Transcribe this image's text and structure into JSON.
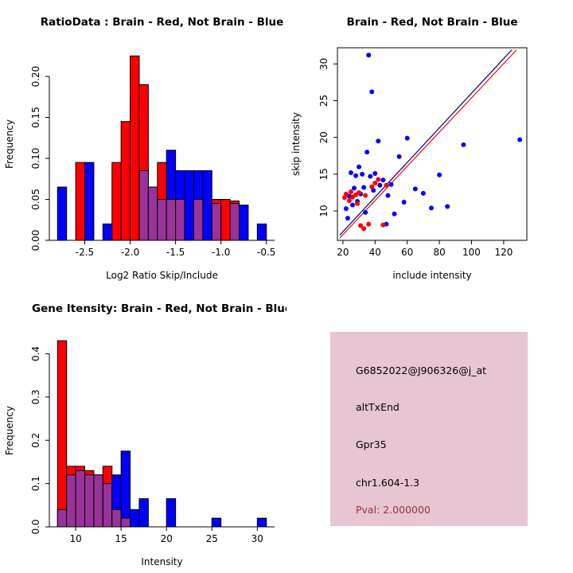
{
  "colors": {
    "red": "#FF0000",
    "blue": "#0000FF",
    "overlap": "#993399",
    "line_red": "#FF0000",
    "line_blue": "#00008B",
    "axis": "#000000",
    "info_bg": "#E8C5D3",
    "pval_text": "#993333"
  },
  "chart_data": [
    {
      "id": "ratio_hist",
      "type": "bar",
      "title": "RatioData : Brain - Red, Not Brain - Blue",
      "xlabel": "Log2 Ratio Skip/Include",
      "ylabel": "Frequency",
      "xlim": [
        -2.89,
        -0.41
      ],
      "ylim": [
        0,
        0.235
      ],
      "xticks": [
        -2.5,
        -2.0,
        -1.5,
        -1.0,
        -0.5
      ],
      "xtick_labels": [
        "-2.5",
        "-2.0",
        "-1.5",
        "-1.0",
        "-0.5"
      ],
      "yticks": [
        0.0,
        0.05,
        0.1,
        0.15,
        0.2
      ],
      "ytick_labels": [
        "0.00",
        "0.05",
        "0.10",
        "0.15",
        "0.20"
      ],
      "bin_width": 0.1,
      "legend": [
        {
          "name": "Brain",
          "color": "red"
        },
        {
          "name": "Not Brain",
          "color": "blue"
        }
      ],
      "bins": [
        {
          "x": -2.8,
          "red": 0,
          "blue": 0.065
        },
        {
          "x": -2.6,
          "red": 0.095,
          "blue": 0
        },
        {
          "x": -2.5,
          "red": 0,
          "blue": 0.095
        },
        {
          "x": -2.3,
          "red": 0,
          "blue": 0.02
        },
        {
          "x": -2.2,
          "red": 0.095,
          "blue": 0
        },
        {
          "x": -2.1,
          "red": 0.145,
          "blue": 0
        },
        {
          "x": -2.0,
          "red": 0.225,
          "blue": 0
        },
        {
          "x": -1.9,
          "red": 0.19,
          "blue": 0.085
        },
        {
          "x": -1.8,
          "red": 0.065,
          "blue": 0.065
        },
        {
          "x": -1.7,
          "red": 0.095,
          "blue": 0.05
        },
        {
          "x": -1.6,
          "red": 0.05,
          "blue": 0.11
        },
        {
          "x": -1.5,
          "red": 0.05,
          "blue": 0.085
        },
        {
          "x": -1.4,
          "red": 0,
          "blue": 0.085
        },
        {
          "x": -1.3,
          "red": 0.05,
          "blue": 0.085
        },
        {
          "x": -1.2,
          "red": 0,
          "blue": 0.085
        },
        {
          "x": -1.1,
          "red": 0.05,
          "blue": 0.045
        },
        {
          "x": -1.0,
          "red": 0.05,
          "blue": 0
        },
        {
          "x": -0.9,
          "red": 0.048,
          "blue": 0.045
        },
        {
          "x": -0.8,
          "red": 0,
          "blue": 0.043
        },
        {
          "x": -0.6,
          "red": 0,
          "blue": 0.02
        }
      ]
    },
    {
      "id": "intensity_scatter",
      "type": "scatter",
      "title": "Brain - Red, Not Brain - Blue",
      "xlabel": "include intensity",
      "ylabel": "skip intensity",
      "xlim": [
        16.6,
        134.4
      ],
      "ylim": [
        6.0,
        32.2
      ],
      "xticks": [
        20,
        40,
        60,
        80,
        100,
        120
      ],
      "xtick_labels": [
        "20",
        "40",
        "60",
        "80",
        "100",
        "120"
      ],
      "yticks": [
        10,
        15,
        20,
        25,
        30
      ],
      "ytick_labels": [
        "10",
        "15",
        "20",
        "25",
        "30"
      ],
      "series": [
        {
          "name": "Not Brain",
          "color": "blue",
          "points": [
            [
              22,
              10.3
            ],
            [
              23,
              9.0
            ],
            [
              24,
              12.0
            ],
            [
              25,
              15.2
            ],
            [
              26,
              10.8
            ],
            [
              27,
              13.1
            ],
            [
              28,
              14.8
            ],
            [
              29,
              11.3
            ],
            [
              30,
              16.0
            ],
            [
              31,
              12.3
            ],
            [
              32,
              15.0
            ],
            [
              33,
              13.2
            ],
            [
              34,
              9.8
            ],
            [
              35,
              18.0
            ],
            [
              36,
              31.2
            ],
            [
              37,
              14.7
            ],
            [
              38,
              26.2
            ],
            [
              39,
              12.8
            ],
            [
              40,
              15.1
            ],
            [
              42,
              19.5
            ],
            [
              43,
              13.5
            ],
            [
              45,
              14.2
            ],
            [
              47,
              8.2
            ],
            [
              48,
              12.1
            ],
            [
              50,
              13.6
            ],
            [
              52,
              9.6
            ],
            [
              55,
              17.4
            ],
            [
              58,
              11.2
            ],
            [
              60,
              19.9
            ],
            [
              65,
              13.0
            ],
            [
              70,
              12.4
            ],
            [
              75,
              10.4
            ],
            [
              80,
              14.9
            ],
            [
              85,
              10.6
            ],
            [
              95,
              19.0
            ],
            [
              130,
              19.7
            ]
          ]
        },
        {
          "name": "Brain",
          "color": "red",
          "points": [
            [
              21,
              11.8
            ],
            [
              22,
              12.3
            ],
            [
              24,
              11.4
            ],
            [
              25,
              12.6
            ],
            [
              26,
              11.9
            ],
            [
              28,
              12.2
            ],
            [
              29,
              11.0
            ],
            [
              30,
              12.5
            ],
            [
              31,
              8.0
            ],
            [
              33,
              7.6
            ],
            [
              34,
              12.1
            ],
            [
              36,
              8.2
            ],
            [
              38,
              13.3
            ],
            [
              40,
              13.8
            ],
            [
              42,
              14.3
            ],
            [
              45,
              8.1
            ],
            [
              47,
              13.5
            ]
          ]
        }
      ],
      "lines": [
        {
          "name": "brain-fit-line",
          "color": "red",
          "x1": 18,
          "y1": 6.3,
          "x2": 128,
          "y2": 31.9
        },
        {
          "name": "notbrain-fit-line",
          "color": "blue",
          "x1": 18,
          "y1": 6.7,
          "x2": 125,
          "y2": 31.9
        }
      ]
    },
    {
      "id": "gene_intensity_hist",
      "type": "bar",
      "title": "Gene Itensity: Brain - Red, Not Brain - Blue",
      "xlabel": "Intensity",
      "ylabel": "Frequency",
      "xlim": [
        7.1,
        31.9
      ],
      "ylim": [
        0,
        0.445
      ],
      "xticks": [
        10,
        15,
        20,
        25,
        30
      ],
      "xtick_labels": [
        "10",
        "15",
        "20",
        "25",
        "30"
      ],
      "yticks": [
        0.0,
        0.1,
        0.2,
        0.3,
        0.4
      ],
      "ytick_labels": [
        "0.0",
        "0.1",
        "0.2",
        "0.3",
        "0.4"
      ],
      "bin_width": 1,
      "legend": [
        {
          "name": "Brain",
          "color": "red"
        },
        {
          "name": "Not Brain",
          "color": "blue"
        }
      ],
      "bins": [
        {
          "x": 8,
          "red": 0.43,
          "blue": 0.04
        },
        {
          "x": 9,
          "red": 0.14,
          "blue": 0.12
        },
        {
          "x": 10,
          "red": 0.14,
          "blue": 0.13
        },
        {
          "x": 11,
          "red": 0.13,
          "blue": 0.12
        },
        {
          "x": 12,
          "red": 0.12,
          "blue": 0.12
        },
        {
          "x": 13,
          "red": 0.14,
          "blue": 0.1
        },
        {
          "x": 14,
          "red": 0.04,
          "blue": 0.12
        },
        {
          "x": 15,
          "red": 0.02,
          "blue": 0.175
        },
        {
          "x": 16,
          "red": 0,
          "blue": 0.04
        },
        {
          "x": 17,
          "red": 0,
          "blue": 0.065
        },
        {
          "x": 20,
          "red": 0,
          "blue": 0.065
        },
        {
          "x": 25,
          "red": 0,
          "blue": 0.02
        },
        {
          "x": 30,
          "red": 0,
          "blue": 0.02
        }
      ]
    }
  ],
  "info_panel": {
    "lines": [
      {
        "text": "G6852022@J906326@j_at",
        "color": "#000000"
      },
      {
        "text": "altTxEnd",
        "color": "#000000"
      },
      {
        "text": "Gpr35",
        "color": "#000000"
      },
      {
        "text": "chr1.604-1.3",
        "color": "#000000"
      },
      {
        "text": "Pval: 2.000000",
        "color": "#993333"
      }
    ]
  }
}
